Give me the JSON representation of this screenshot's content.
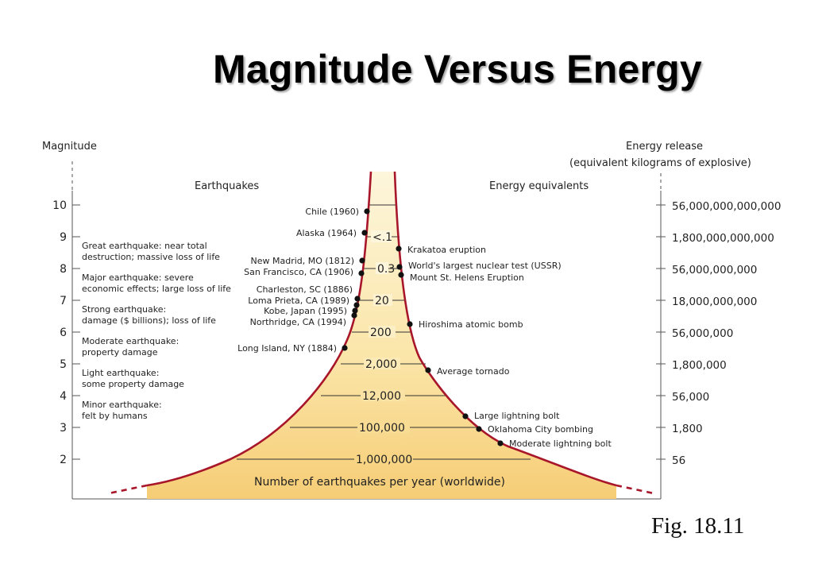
{
  "title": "Magnitude Versus Energy",
  "figure_label": "Fig. 18.11",
  "axes": {
    "left_title": "Magnitude",
    "right_title_line1": "Energy release",
    "right_title_line2": "(equivalent kilograms of explosive)",
    "left_section": "Earthquakes",
    "right_section": "Energy equivalents",
    "magnitudes": [
      "10",
      "9",
      "8",
      "7",
      "6",
      "5",
      "4",
      "3",
      "2"
    ],
    "energies": [
      "56,000,000,000,000",
      "1,800,000,000,000",
      "56,000,000,000",
      "18,000,000,000",
      "56,000,000",
      "1,800,000",
      "56,000",
      "1,800",
      "56"
    ]
  },
  "classes": [
    {
      "line1": "Great earthquake: near total",
      "line2": "destruction; massive loss of life"
    },
    {
      "line1": "Major earthquake: severe",
      "line2": "economic effects; large loss of life"
    },
    {
      "line1": "Strong earthquake:",
      "line2": "damage ($ billions); loss of life"
    },
    {
      "line1": "Moderate earthquake:",
      "line2": "property damage"
    },
    {
      "line1": "Light earthquake:",
      "line2": "some property damage"
    },
    {
      "line1": "Minor earthquake:",
      "line2": "felt by humans"
    }
  ],
  "frequency": {
    "values": [
      "<.1",
      "0.3",
      "20",
      "200",
      "2,000",
      "12,000",
      "100,000",
      "1,000,000"
    ],
    "caption": "Number of earthquakes per year (worldwide)"
  },
  "earthquakes": [
    {
      "label": "Chile (1960)"
    },
    {
      "label": "Alaska (1964)"
    },
    {
      "label": "New Madrid, MO (1812)"
    },
    {
      "label": "San Francisco, CA (1906)"
    },
    {
      "label": "Charleston, SC (1886)"
    },
    {
      "label": "Loma Prieta, CA (1989)"
    },
    {
      "label": "Kobe, Japan (1995)"
    },
    {
      "label": "Northridge, CA (1994)"
    },
    {
      "label": "Long Island, NY (1884)"
    }
  ],
  "equivalents": [
    {
      "label": "Krakatoa eruption"
    },
    {
      "label": "World's largest nuclear test (USSR)"
    },
    {
      "label": "Mount St. Helens Eruption"
    },
    {
      "label": "Hiroshima atomic bomb"
    },
    {
      "label": "Average tornado"
    },
    {
      "label": "Large lightning bolt"
    },
    {
      "label": "Oklahoma City bombing"
    },
    {
      "label": "Moderate lightning bolt"
    }
  ],
  "colors": {
    "curve": "#a8162a",
    "fill_top": "#fdf6dc",
    "fill_bottom": "#f6cd76",
    "text": "#222222"
  }
}
